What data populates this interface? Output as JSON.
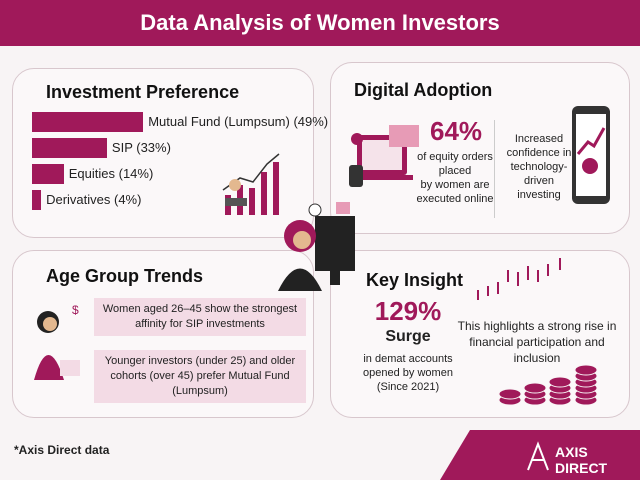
{
  "header": {
    "title": "Data Analysis of Women Investors"
  },
  "investment_preference": {
    "title": "Investment Preference",
    "items": [
      {
        "label": "Mutual Fund (Lumpsum) (49%)",
        "value": 49
      },
      {
        "label": "SIP (33%)",
        "value": 33
      },
      {
        "label": "Equities (14%)",
        "value": 14
      },
      {
        "label": "Derivatives (4%)",
        "value": 4
      }
    ]
  },
  "digital_adoption": {
    "title": "Digital Adoption",
    "stat": "64%",
    "lines": [
      "of equity orders",
      "placed",
      "by women are",
      "executed online"
    ],
    "side_note": [
      "Increased",
      "confidence in",
      "technology-driven",
      "investing"
    ]
  },
  "age_group_trends": {
    "title": "Age Group Trends",
    "notes": [
      "Women aged 26–45 show the strongest affinity for SIP investments",
      "Younger investors (under 25) and older cohorts (over 45) prefer Mutual Fund (Lumpsum)"
    ]
  },
  "key_insight": {
    "title": "Key Insight",
    "stat": "129%",
    "stat_label": "Surge",
    "lines": [
      "in demat accounts",
      "opened by women",
      "(Since 2021)"
    ],
    "note": "This highlights a strong rise in financial participation and inclusion"
  },
  "footer": {
    "source": "*Axis Direct data",
    "brand": "AXIS DIRECT"
  }
}
